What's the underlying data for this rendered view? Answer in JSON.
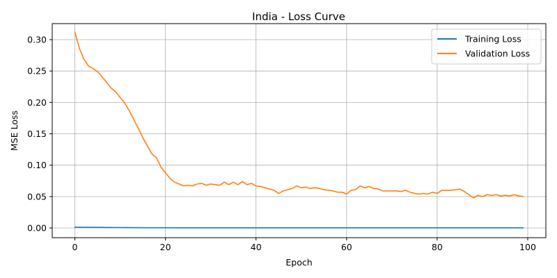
{
  "chart_data": {
    "type": "line",
    "title": "India - Loss Curve",
    "xlabel": "Epoch",
    "ylabel": "MSE Loss",
    "xlim": [
      -5,
      104
    ],
    "ylim": [
      -0.0155,
      0.3255
    ],
    "xticks": [
      0,
      20,
      40,
      60,
      80,
      100
    ],
    "xtick_labels": [
      "0",
      "20",
      "40",
      "60",
      "80",
      "100"
    ],
    "yticks": [
      0.0,
      0.05,
      0.1,
      0.15,
      0.2,
      0.25,
      0.3
    ],
    "ytick_labels": [
      "0.00",
      "0.05",
      "0.10",
      "0.15",
      "0.20",
      "0.25",
      "0.30"
    ],
    "grid": true,
    "legend_position": "top-right",
    "x": [
      0,
      1,
      2,
      3,
      4,
      5,
      6,
      7,
      8,
      9,
      10,
      11,
      12,
      13,
      14,
      15,
      16,
      17,
      18,
      19,
      20,
      21,
      22,
      23,
      24,
      25,
      26,
      27,
      28,
      29,
      30,
      31,
      32,
      33,
      34,
      35,
      36,
      37,
      38,
      39,
      40,
      41,
      42,
      43,
      44,
      45,
      46,
      47,
      48,
      49,
      50,
      51,
      52,
      53,
      54,
      55,
      56,
      57,
      58,
      59,
      60,
      61,
      62,
      63,
      64,
      65,
      66,
      67,
      68,
      69,
      70,
      71,
      72,
      73,
      74,
      75,
      76,
      77,
      78,
      79,
      80,
      81,
      82,
      83,
      84,
      85,
      86,
      87,
      88,
      89,
      90,
      91,
      92,
      93,
      94,
      95,
      96,
      97,
      98,
      99
    ],
    "series": [
      {
        "name": "Training Loss",
        "color": "#1f77b4",
        "values": [
          0.0013,
          0.0012,
          0.0011,
          0.001,
          0.001,
          0.0009,
          0.0009,
          0.0008,
          0.0008,
          0.0007,
          0.0007,
          0.0006,
          0.0006,
          0.0005,
          0.0005,
          0.0004,
          0.0004,
          0.0004,
          0.0003,
          0.0003,
          0.0003,
          0.0003,
          0.0003,
          0.0002,
          0.0002,
          0.0002,
          0.0002,
          0.0002,
          0.0002,
          0.0002,
          0.0002,
          0.0002,
          0.0002,
          0.0002,
          0.0002,
          0.0002,
          0.0002,
          0.0002,
          0.0002,
          0.0002,
          0.0002,
          0.0002,
          0.0002,
          0.0002,
          0.0002,
          0.0002,
          0.0002,
          0.0002,
          0.0002,
          0.0002,
          0.0002,
          0.0002,
          0.0002,
          0.0002,
          0.0002,
          0.0002,
          0.0002,
          0.0002,
          0.0002,
          0.0002,
          0.0002,
          0.0002,
          0.0002,
          0.0002,
          0.0002,
          0.0002,
          0.0002,
          0.0002,
          0.0002,
          0.0002,
          0.0002,
          0.0002,
          0.0002,
          0.0002,
          0.0002,
          0.0002,
          0.0002,
          0.0002,
          0.0002,
          0.0002,
          0.0002,
          0.0002,
          0.0002,
          0.0002,
          0.0002,
          0.0002,
          0.0002,
          0.0002,
          0.0002,
          0.0002,
          0.0002,
          0.0002,
          0.0002,
          0.0002,
          0.0002,
          0.0002,
          0.0002,
          0.0002,
          0.0002,
          0.0002
        ]
      },
      {
        "name": "Validation Loss",
        "color": "#ff7f0e",
        "values": [
          0.312,
          0.286,
          0.269,
          0.258,
          0.254,
          0.249,
          0.241,
          0.232,
          0.223,
          0.217,
          0.208,
          0.199,
          0.187,
          0.173,
          0.159,
          0.144,
          0.131,
          0.118,
          0.112,
          0.097,
          0.088,
          0.079,
          0.073,
          0.07,
          0.067,
          0.068,
          0.067,
          0.07,
          0.071,
          0.068,
          0.07,
          0.069,
          0.068,
          0.073,
          0.069,
          0.073,
          0.069,
          0.074,
          0.069,
          0.071,
          0.067,
          0.066,
          0.064,
          0.062,
          0.06,
          0.055,
          0.059,
          0.061,
          0.063,
          0.067,
          0.064,
          0.065,
          0.063,
          0.064,
          0.063,
          0.061,
          0.06,
          0.059,
          0.057,
          0.057,
          0.054,
          0.06,
          0.061,
          0.067,
          0.064,
          0.066,
          0.063,
          0.062,
          0.059,
          0.059,
          0.059,
          0.059,
          0.058,
          0.06,
          0.057,
          0.055,
          0.054,
          0.055,
          0.054,
          0.057,
          0.055,
          0.06,
          0.06,
          0.06,
          0.061,
          0.062,
          0.058,
          0.053,
          0.048,
          0.052,
          0.05,
          0.053,
          0.052,
          0.053,
          0.051,
          0.052,
          0.051,
          0.053,
          0.051,
          0.05
        ]
      }
    ]
  }
}
